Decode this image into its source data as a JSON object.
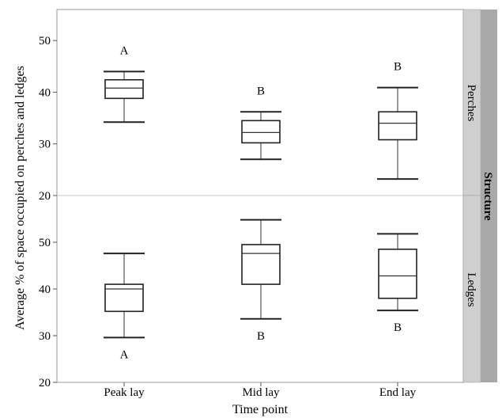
{
  "chart_data": {
    "type": "boxplot",
    "xlabel": "Time point",
    "ylabel": "Average % of space occupied on perches and ledges",
    "facet_label": "Structure",
    "categories": [
      "Peak lay",
      "Mid lay",
      "End lay"
    ],
    "panels": [
      {
        "name": "Perches",
        "ylim": [
          20,
          56
        ],
        "yticks": [
          "20",
          "30",
          "40",
          "50"
        ],
        "boxes": [
          {
            "category": "Peak lay",
            "min": 34.2,
            "q1": 38.8,
            "median": 40.8,
            "q3": 42.4,
            "max": 44.0,
            "letter": "A"
          },
          {
            "category": "Mid lay",
            "min": 27.0,
            "q1": 30.2,
            "median": 32.2,
            "q3": 34.5,
            "max": 36.2,
            "letter": "B"
          },
          {
            "category": "End lay",
            "min": 23.2,
            "q1": 30.8,
            "median": 34.0,
            "q3": 36.2,
            "max": 40.9,
            "letter": "B"
          }
        ]
      },
      {
        "name": "Ledges",
        "ylim": [
          20,
          60
        ],
        "yticks": [
          "20",
          "30",
          "40",
          "50"
        ],
        "boxes": [
          {
            "category": "Peak lay",
            "min": 29.6,
            "q1": 35.2,
            "median": 40.0,
            "q3": 41.0,
            "max": 47.6,
            "letter": "A"
          },
          {
            "category": "Mid lay",
            "min": 33.6,
            "q1": 41.0,
            "median": 47.6,
            "q3": 49.5,
            "max": 54.8,
            "letter": "B"
          },
          {
            "category": "End lay",
            "min": 35.4,
            "q1": 38.0,
            "median": 42.8,
            "q3": 48.5,
            "max": 51.8,
            "letter": "B"
          }
        ]
      }
    ],
    "grid": false
  }
}
